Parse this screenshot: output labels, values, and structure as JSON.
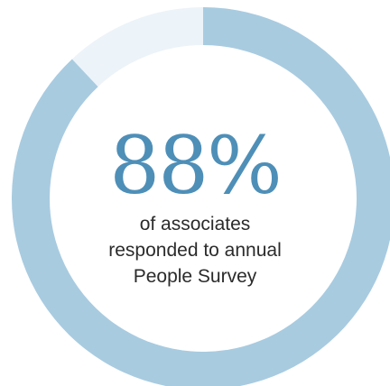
{
  "chart_data": {
    "type": "pie",
    "style": "donut",
    "value_label": "88%",
    "caption_lines": [
      "of associates",
      "responded to annual",
      "People Survey"
    ],
    "slices": [
      {
        "value": 88,
        "color": "#a8cbe0"
      },
      {
        "value": 12,
        "color": "#ecf3f9"
      }
    ],
    "start_angle_deg": 0,
    "direction": "clockwise"
  },
  "colors": {
    "accent": "#4e8fb8",
    "ring_filled": "#a8cbe0",
    "ring_remaining": "#ecf3f9",
    "caption_text": "#2b2b2b"
  }
}
